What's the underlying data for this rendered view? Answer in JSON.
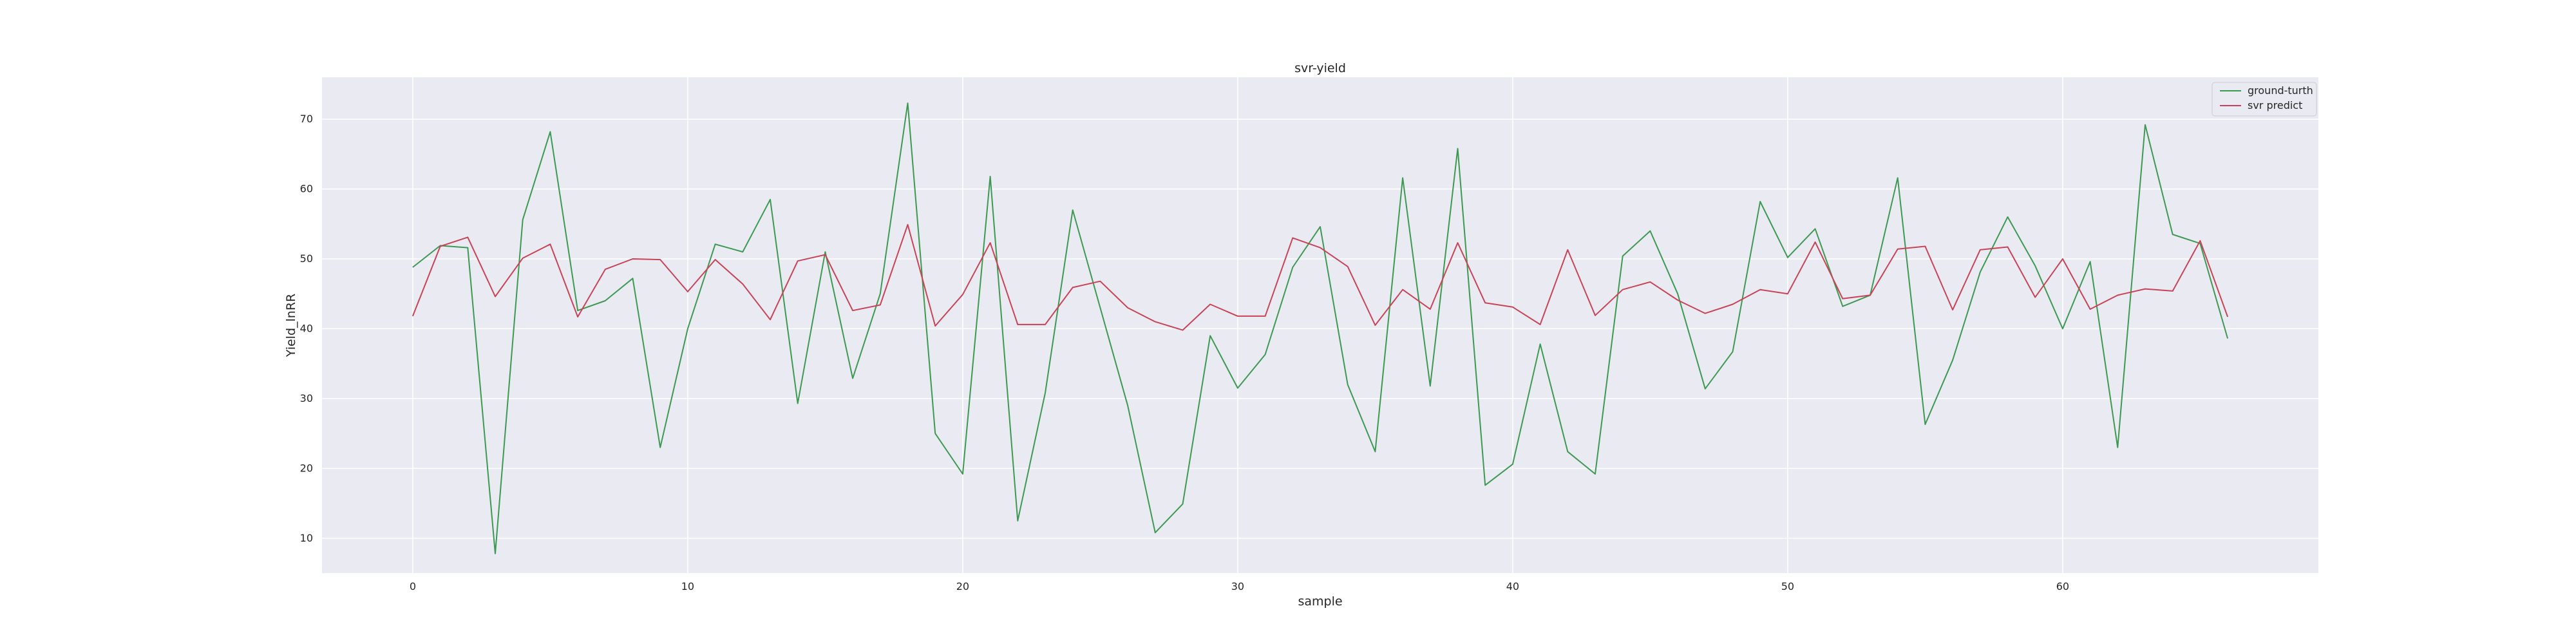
{
  "chart_data": {
    "type": "line",
    "title": "svr-yield",
    "xlabel": "sample",
    "ylabel": "Yield_lnRR",
    "xlim": [
      -3.3,
      69.3
    ],
    "ylim": [
      5,
      76
    ],
    "xticks": [
      0,
      10,
      20,
      30,
      40,
      50,
      60
    ],
    "yticks": [
      10,
      20,
      30,
      40,
      50,
      60,
      70
    ],
    "grid": true,
    "legend_position": "top-right",
    "x": [
      0,
      1,
      2,
      3,
      4,
      5,
      6,
      7,
      8,
      9,
      10,
      11,
      12,
      13,
      14,
      15,
      16,
      17,
      18,
      19,
      20,
      21,
      22,
      23,
      24,
      25,
      26,
      27,
      28,
      29,
      30,
      31,
      32,
      33,
      34,
      35,
      36,
      37,
      38,
      39,
      40,
      41,
      42,
      43,
      44,
      45,
      46,
      47,
      48,
      49,
      50,
      51,
      52,
      53,
      54,
      55,
      56,
      57,
      58,
      59,
      60,
      61,
      62,
      63,
      64,
      65,
      66
    ],
    "series": [
      {
        "name": "ground-turth",
        "color": "#3d9952",
        "values": [
          48.8,
          51.9,
          51.6,
          7.8,
          55.6,
          68.2,
          42.6,
          44.0,
          47.2,
          23.0,
          40.0,
          52.1,
          51.0,
          58.5,
          29.3,
          51.0,
          32.9,
          45.0,
          72.3,
          25.0,
          19.2,
          61.8,
          12.5,
          30.8,
          57.0,
          43.0,
          29.0,
          10.8,
          14.9,
          39.0,
          31.5,
          36.3,
          48.8,
          54.6,
          32.0,
          22.4,
          61.6,
          31.8,
          65.8,
          17.6,
          20.6,
          37.8,
          22.4,
          19.2,
          50.4,
          54.0,
          45.0,
          31.4,
          36.7,
          58.2,
          50.2,
          54.3,
          43.2,
          44.8,
          61.6,
          26.3,
          35.5,
          48.1,
          56.0,
          49.0,
          40.0,
          49.6,
          23.0,
          69.2,
          53.5,
          52.2,
          38.6
        ]
      },
      {
        "name": "svr predict",
        "color": "#c94356",
        "values": [
          41.8,
          51.8,
          53.1,
          44.6,
          50.1,
          52.1,
          41.7,
          48.5,
          50.0,
          49.9,
          45.3,
          49.9,
          46.4,
          41.3,
          49.7,
          50.6,
          42.6,
          43.4,
          54.9,
          40.4,
          44.9,
          52.3,
          40.6,
          40.6,
          45.9,
          46.8,
          43.0,
          41.0,
          39.8,
          43.5,
          41.8,
          41.8,
          53.0,
          51.6,
          48.9,
          40.5,
          45.6,
          42.8,
          52.3,
          43.7,
          43.1,
          40.6,
          51.3,
          41.9,
          45.6,
          46.7,
          44.1,
          42.2,
          43.5,
          45.6,
          45.0,
          52.4,
          44.3,
          44.8,
          51.4,
          51.8,
          42.7,
          51.3,
          51.7,
          44.5,
          50.0,
          42.8,
          44.8,
          45.7,
          45.4,
          52.6,
          41.7
        ]
      }
    ]
  }
}
